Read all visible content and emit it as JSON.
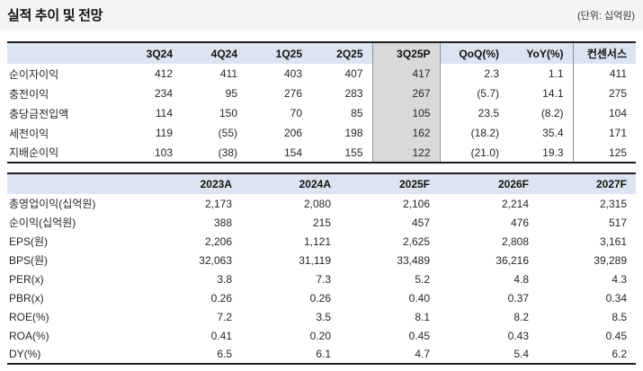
{
  "page": {
    "title": "실적 추이 및 전망",
    "unit_note": "(단위: 십억원)"
  },
  "colors": {
    "header_bg": "#dce3f1",
    "highlight_column_bg": "#d9d9d9",
    "title_band_bg": "#f4f4f4",
    "table_border": "#1c1c1c",
    "column_divider": "#8f949c"
  },
  "quarterly_table": {
    "highlight_column": "3Q25P",
    "columns": [
      "",
      "3Q24",
      "4Q24",
      "1Q25",
      "2Q25",
      "3Q25P",
      "QoQ(%)",
      "YoY(%)",
      "컨센서스"
    ],
    "rows": [
      {
        "label": "순이자이익",
        "values": [
          "412",
          "411",
          "403",
          "407",
          "417",
          "2.3",
          "1.1",
          "411"
        ]
      },
      {
        "label": "충전이익",
        "values": [
          "234",
          "95",
          "276",
          "283",
          "267",
          "(5.7)",
          "14.1",
          "275"
        ]
      },
      {
        "label": "충당금전입액",
        "values": [
          "114",
          "150",
          "70",
          "85",
          "105",
          "23.5",
          "(8.2)",
          "104"
        ]
      },
      {
        "label": "세전이익",
        "values": [
          "119",
          "(55)",
          "206",
          "198",
          "162",
          "(18.2)",
          "35.4",
          "171"
        ]
      },
      {
        "label": "지배순이익",
        "values": [
          "103",
          "(38)",
          "154",
          "155",
          "122",
          "(21.0)",
          "19.3",
          "125"
        ]
      }
    ]
  },
  "annual_table": {
    "columns": [
      "",
      "2023A",
      "2024A",
      "2025F",
      "2026F",
      "2027F"
    ],
    "rows": [
      {
        "label": "총영업이익(십억원)",
        "values": [
          "2,173",
          "2,080",
          "2,106",
          "2,214",
          "2,315"
        ]
      },
      {
        "label": "순이익(십억원)",
        "values": [
          "388",
          "215",
          "457",
          "476",
          "517"
        ]
      },
      {
        "label": "EPS(원)",
        "values": [
          "2,206",
          "1,121",
          "2,625",
          "2,808",
          "3,161"
        ]
      },
      {
        "label": "BPS(원)",
        "values": [
          "32,063",
          "31,119",
          "33,489",
          "36,216",
          "39,289"
        ]
      },
      {
        "label": "PER(x)",
        "values": [
          "3.8",
          "7.3",
          "5.2",
          "4.8",
          "4.3"
        ]
      },
      {
        "label": "PBR(x)",
        "values": [
          "0.26",
          "0.26",
          "0.40",
          "0.37",
          "0.34"
        ]
      },
      {
        "label": "ROE(%)",
        "values": [
          "7.2",
          "3.5",
          "8.1",
          "8.2",
          "8.5"
        ]
      },
      {
        "label": "ROA(%)",
        "values": [
          "0.41",
          "0.20",
          "0.45",
          "0.43",
          "0.45"
        ]
      },
      {
        "label": "DY(%)",
        "values": [
          "6.5",
          "6.1",
          "4.7",
          "5.4",
          "6.2"
        ]
      }
    ]
  }
}
